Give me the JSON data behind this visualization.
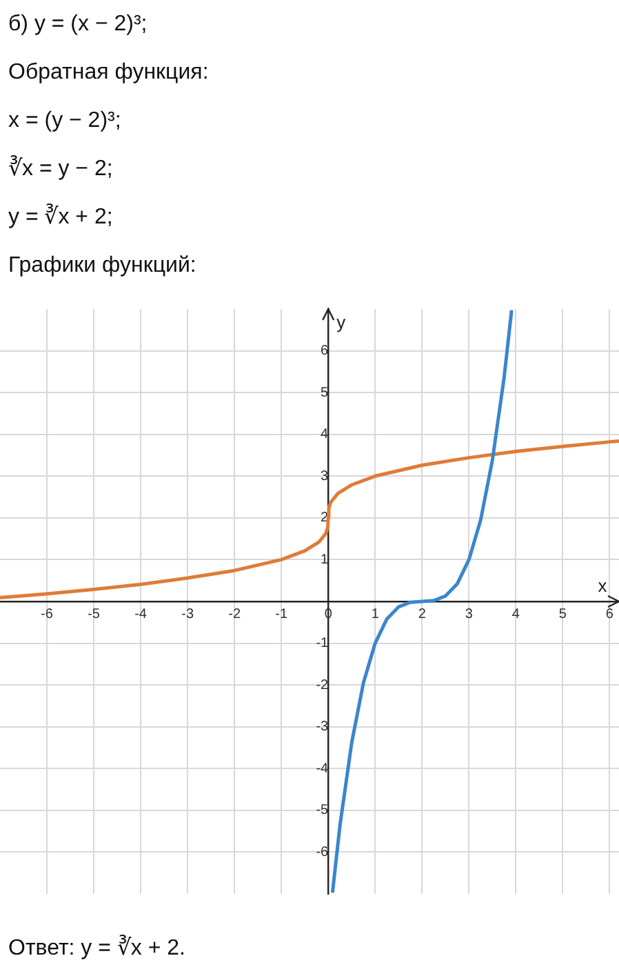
{
  "chart_data": {
    "type": "line",
    "title": "б) y = (x − 2)³;",
    "annotations": [
      "Обратная функция:",
      "x = (y − 2)³;",
      "∛x = y − 2;",
      "y = ∛x + 2;",
      "Графики функций:",
      "Ответ: y = ∛x + 2."
    ],
    "xlabel": "x",
    "ylabel": "y",
    "series": [
      {
        "color": "#3b86cc",
        "x": [
          0.09,
          0.25,
          0.5,
          0.75,
          1,
          1.25,
          1.5,
          1.75,
          2,
          2.25,
          2.5,
          2.75,
          3,
          3.25,
          3.5,
          3.75,
          3.91
        ],
        "values": [
          -6.97,
          -5.36,
          -3.38,
          -1.95,
          -1,
          -0.42,
          -0.13,
          -0.02,
          0,
          0.02,
          0.13,
          0.42,
          1,
          1.95,
          3.38,
          5.36,
          6.97
        ]
      },
      {
        "color": "#e07b39",
        "x": [
          -7,
          -6,
          -5,
          -4,
          -3,
          -2,
          -1,
          -0.5,
          -0.2,
          -0.05,
          -0.01,
          0,
          0.01,
          0.05,
          0.2,
          0.5,
          1,
          2,
          3,
          4,
          5,
          6,
          6.2
        ],
        "values": [
          0.09,
          0.18,
          0.29,
          0.41,
          0.56,
          0.74,
          1,
          1.21,
          1.42,
          1.63,
          1.78,
          2,
          2.22,
          2.37,
          2.58,
          2.79,
          3,
          3.26,
          3.44,
          3.59,
          3.71,
          3.82,
          3.84
        ]
      }
    ],
    "xlim": [
      -7,
      6.2
    ],
    "ylim": [
      -7,
      7
    ],
    "xticks": [
      -6,
      -5,
      -4,
      -3,
      -2,
      -1,
      0,
      1,
      2,
      3,
      4,
      5,
      6
    ],
    "yticks": [
      -6,
      -5,
      -4,
      -3,
      -2,
      -1,
      {
        "value": 0,
        "label": null
      },
      1,
      2,
      3,
      4,
      5,
      6
    ],
    "grid": true,
    "legend": false,
    "marker": "none",
    "line_style": "solid"
  }
}
